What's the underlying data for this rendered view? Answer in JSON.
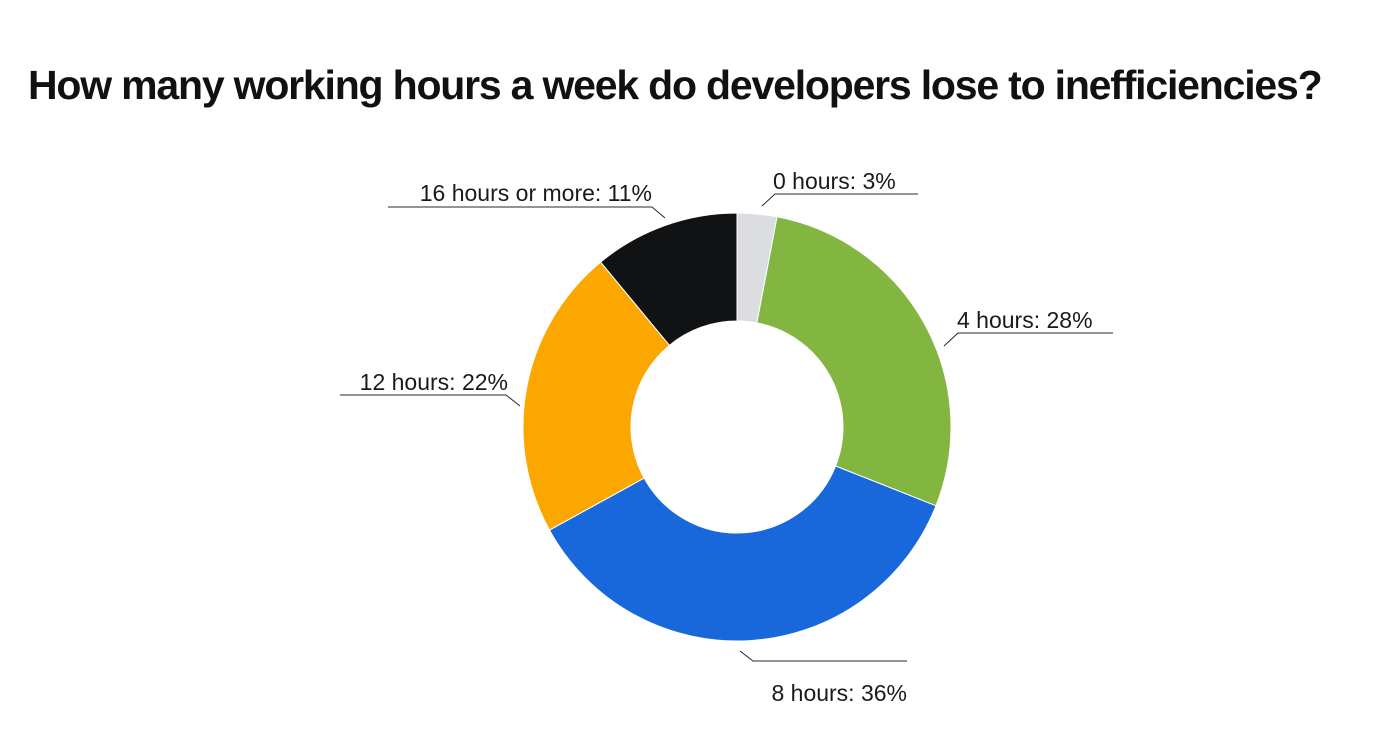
{
  "chart_data": {
    "type": "pie",
    "variant": "donut",
    "title": "How many working hours a week do developers lose to inefficiencies?",
    "slices": [
      {
        "label": "0 hours: 3%",
        "category": "0 hours",
        "value": 3,
        "color": "#dcdde0"
      },
      {
        "label": "4 hours: 28%",
        "category": "4 hours",
        "value": 28,
        "color": "#82b641"
      },
      {
        "label": "8 hours: 36%",
        "category": "8 hours",
        "value": 36,
        "color": "#1868dc"
      },
      {
        "label": "12 hours: 22%",
        "category": "12 hours",
        "value": 22,
        "color": "#fca700"
      },
      {
        "label": "16 hours or more: 11%",
        "category": "16 hours or more",
        "value": 11,
        "color": "#101214"
      }
    ],
    "legend": "none",
    "label_style": "outside-with-leader-lines"
  }
}
